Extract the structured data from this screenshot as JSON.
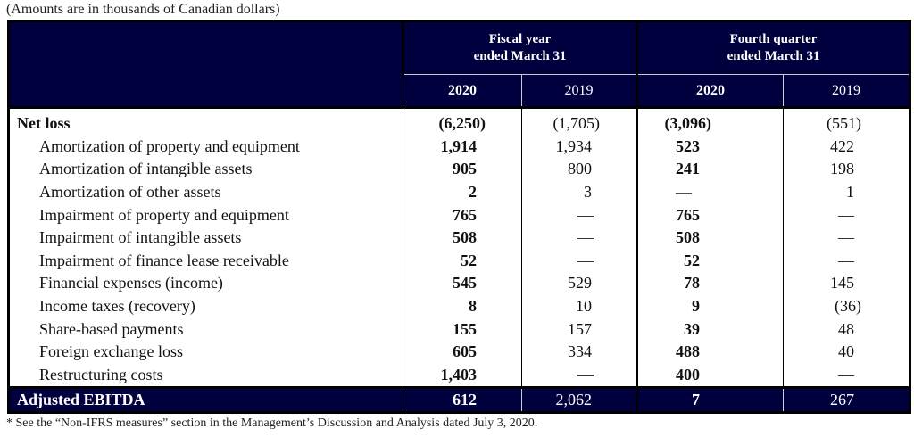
{
  "note": "(Amounts are in thousands of Canadian dollars)",
  "header": {
    "group1": [
      "Fiscal year",
      "ended March 31"
    ],
    "group2": [
      "Fourth quarter",
      "ended March 31"
    ],
    "years": [
      "2020",
      "2019",
      "2020",
      "2019"
    ]
  },
  "rows": [
    {
      "label": "Net loss",
      "values": [
        "(6,250)",
        "(1,705)",
        "(3,096)",
        "(551)"
      ],
      "bold": true
    },
    {
      "label": "Amortization of property and equipment",
      "values": [
        "1,914",
        "1,934",
        "523",
        "422"
      ]
    },
    {
      "label": "Amortization of intangible assets",
      "values": [
        "905",
        "800",
        "241",
        "198"
      ]
    },
    {
      "label": "Amortization of other assets",
      "values": [
        "2",
        "3",
        "—",
        "1"
      ]
    },
    {
      "label": "Impairment of property and equipment",
      "values": [
        "765",
        "—",
        "765",
        "—"
      ]
    },
    {
      "label": "Impairment of intangible assets",
      "values": [
        "508",
        "—",
        "508",
        "—"
      ]
    },
    {
      "label": "Impairment of finance lease receivable",
      "values": [
        "52",
        "—",
        "52",
        "—"
      ]
    },
    {
      "label": "Financial expenses (income)",
      "values": [
        "545",
        "529",
        "78",
        "145"
      ]
    },
    {
      "label": "Income taxes (recovery)",
      "values": [
        "8",
        "10",
        "9",
        "(36)"
      ]
    },
    {
      "label": "Share-based payments",
      "values": [
        "155",
        "157",
        "39",
        "48"
      ]
    },
    {
      "label": "Foreign exchange loss",
      "values": [
        "605",
        "334",
        "488",
        "40"
      ]
    },
    {
      "label": "Restructuring costs",
      "values": [
        "1,403",
        "—",
        "400",
        "—"
      ]
    }
  ],
  "total": {
    "label": "Adjusted EBITDA",
    "values": [
      "612",
      "2,062",
      "7",
      "267"
    ]
  },
  "footnote": "* See the “Non-IFRS measures” section in the Management’s Discussion and Analysis dated July 3, 2020."
}
